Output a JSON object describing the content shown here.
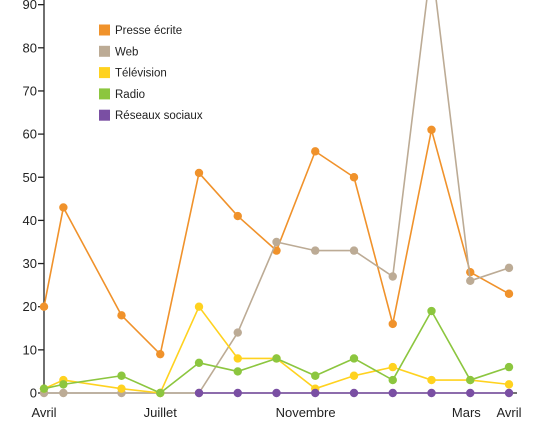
{
  "chart_data": {
    "type": "line",
    "title": "",
    "xlabel": "",
    "ylabel": "",
    "ylim": [
      0,
      90
    ],
    "yticks": [
      0,
      10,
      20,
      30,
      40,
      50,
      60,
      70,
      80,
      90
    ],
    "x": [
      0,
      1,
      2,
      3,
      4,
      5,
      6,
      7,
      8,
      9,
      10,
      11,
      12
    ],
    "xtick_labels": [
      {
        "label": "Avril",
        "x": 0
      },
      {
        "label": "Juillet",
        "x": 3
      },
      {
        "label": "Novembre",
        "x": 6.75
      },
      {
        "label": "Mars",
        "x": 10.9
      },
      {
        "label": "Avril",
        "x": 12
      }
    ],
    "grid": false,
    "legend_position": "top-left",
    "series": [
      {
        "name": "Presse écrite",
        "color": "#F0922B",
        "x": [
          0,
          0.5,
          2,
          3,
          4,
          5,
          6,
          7,
          8,
          9,
          10,
          11,
          12
        ],
        "values": [
          20,
          43,
          18,
          9,
          51,
          41,
          33,
          56,
          50,
          16,
          61,
          28,
          23
        ]
      },
      {
        "name": "Web",
        "color": "#BCAB95",
        "x": [
          0,
          0.5,
          2,
          3,
          4,
          5,
          6,
          7,
          8,
          9,
          10,
          11,
          12
        ],
        "values": [
          0,
          0,
          0,
          0,
          0,
          14,
          35,
          33,
          33,
          27,
          100,
          26,
          29
        ]
      },
      {
        "name": "Télévision",
        "color": "#FFD21F",
        "x": [
          0,
          0.5,
          2,
          3,
          4,
          5,
          6,
          7,
          8,
          9,
          10,
          11,
          12
        ],
        "values": [
          1,
          3,
          1,
          0,
          20,
          8,
          8,
          1,
          4,
          6,
          3,
          3,
          2
        ]
      },
      {
        "name": "Radio",
        "color": "#8CC63F",
        "x": [
          0,
          0.5,
          2,
          3,
          4,
          5,
          6,
          7,
          8,
          9,
          10,
          11,
          12
        ],
        "values": [
          1,
          2,
          4,
          0,
          7,
          5,
          8,
          4,
          8,
          3,
          19,
          3,
          6
        ]
      },
      {
        "name": "Réseaux sociaux",
        "color": "#7A4FA3",
        "x": [
          4,
          5,
          6,
          7,
          8,
          9,
          10,
          11,
          12
        ],
        "values": [
          0,
          0,
          0,
          0,
          0,
          0,
          0,
          0,
          0
        ]
      }
    ]
  }
}
